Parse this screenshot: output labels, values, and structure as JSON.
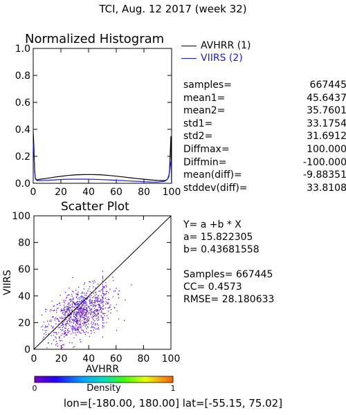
{
  "main_title": "TCI,  Aug. 12 2017 (week 32)",
  "colors": {
    "avhrr": "#000000",
    "viirs": "#1a1ae6"
  },
  "histogram": {
    "title": "Normalized Histogram",
    "legend": [
      {
        "label": "AVHRR (1)",
        "color": "#000000"
      },
      {
        "label": "VIIRS (2)",
        "color": "#1a1ae6"
      }
    ],
    "stats": [
      {
        "label": "samples=",
        "value": "667445"
      },
      {
        "label": "mean1=",
        "value": "45.6437"
      },
      {
        "label": "mean2=",
        "value": "35.7601"
      },
      {
        "label": "std1=",
        "value": "33.1754"
      },
      {
        "label": "std2=",
        "value": "31.6912"
      },
      {
        "label": "Diffmax=",
        "value": "100.000"
      },
      {
        "label": "Diffmin=",
        "value": "-100.000"
      },
      {
        "label": "mean(diff)=",
        "value": "-9.88351"
      },
      {
        "label": "stddev(diff)=",
        "value": "33.8108"
      }
    ]
  },
  "scatter": {
    "title": "Scatter Plot",
    "regression": [
      "Y= a +b * X",
      "a= 15.822305",
      "b= 0.43681558"
    ],
    "summary": [
      "Samples= 667445",
      "CC=  0.4573",
      "RMSE= 28.180633"
    ],
    "colorbar": {
      "label": "Density",
      "min": "0",
      "max": "1"
    }
  },
  "footer": "lon=[-180.00, 180.00] lat=[-55.15, 75.02]",
  "chart_data": [
    {
      "type": "line",
      "title": "Normalized Histogram",
      "xlim": [
        0,
        100
      ],
      "ylim": [
        0,
        1
      ],
      "xticks": [
        "0",
        "20",
        "40",
        "60",
        "80",
        "100"
      ],
      "yticks": [
        "0.0",
        "0.2",
        "0.4",
        "0.6",
        "0.8",
        "1.0"
      ],
      "series": [
        {
          "name": "AVHRR (1)",
          "color": "#000000",
          "x": [
            0,
            0.5,
            1,
            1.5,
            2,
            3,
            5,
            10,
            15,
            20,
            25,
            30,
            35,
            40,
            45,
            50,
            55,
            60,
            65,
            70,
            75,
            80,
            85,
            90,
            95,
            97,
            98,
            98.5,
            99,
            99.5,
            100
          ],
          "y": [
            0.38,
            0.27,
            0.1,
            0.04,
            0.03,
            0.025,
            0.03,
            0.037,
            0.045,
            0.052,
            0.058,
            0.062,
            0.064,
            0.065,
            0.064,
            0.062,
            0.058,
            0.053,
            0.047,
            0.041,
            0.035,
            0.03,
            0.025,
            0.021,
            0.02,
            0.03,
            0.05,
            0.1,
            0.22,
            0.35,
            0.0
          ]
        },
        {
          "name": "VIIRS (2)",
          "color": "#1a1ae6",
          "x": [
            0,
            0.5,
            1,
            1.5,
            2,
            3,
            5,
            10,
            15,
            20,
            25,
            30,
            35,
            40,
            45,
            50,
            55,
            60,
            65,
            70,
            75,
            80,
            85,
            90,
            95,
            97,
            98,
            98.5,
            99,
            99.5,
            100
          ],
          "y": [
            0.3,
            0.22,
            0.09,
            0.035,
            0.025,
            0.02,
            0.02,
            0.022,
            0.025,
            0.028,
            0.03,
            0.031,
            0.031,
            0.03,
            0.029,
            0.027,
            0.025,
            0.022,
            0.02,
            0.017,
            0.015,
            0.012,
            0.01,
            0.009,
            0.015,
            0.03,
            0.06,
            0.09,
            0.14,
            0.16,
            0.0
          ]
        }
      ]
    },
    {
      "type": "scatter",
      "title": "Scatter Plot",
      "xlabel": "AVHRR",
      "ylabel": "VIIRS",
      "xlim": [
        0,
        100
      ],
      "ylim": [
        0,
        100
      ],
      "xticks": [
        "0",
        "20",
        "40",
        "60",
        "80",
        "100"
      ],
      "yticks": [
        "0",
        "20",
        "40",
        "60",
        "80",
        "100"
      ],
      "reference_line": [
        [
          0,
          0
        ],
        [
          100,
          100
        ]
      ],
      "regression": {
        "a": 15.822305,
        "b": 0.43681558
      },
      "cloud": {
        "center": [
          33,
          27
        ],
        "std": [
          12,
          10
        ],
        "rho": 0.46,
        "count": 900,
        "xlim": [
          4,
          72
        ],
        "ylim": [
          1,
          62
        ]
      }
    }
  ]
}
